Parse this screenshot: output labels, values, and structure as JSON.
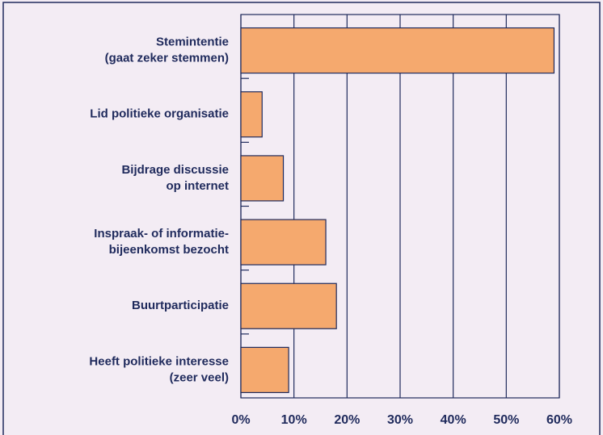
{
  "chart_data": {
    "type": "barh",
    "categories": [
      [
        "Stemintentie",
        "(gaat zeker stemmen)"
      ],
      [
        "Lid politieke organisatie"
      ],
      [
        "Bijdrage discussie",
        "op internet"
      ],
      [
        "Inspraak- of informatie-",
        "bijeenkomst bezocht"
      ],
      [
        "Buurtparticipatie"
      ],
      [
        "Heeft politieke interesse",
        "(zeer veel)"
      ]
    ],
    "values": [
      59,
      4,
      8,
      16,
      18,
      9
    ],
    "color": "#f5a96e",
    "xlim": [
      0,
      60
    ],
    "xticks": [
      {
        "value": 0,
        "label": "0%"
      },
      {
        "value": 10,
        "label": "10%"
      },
      {
        "value": 20,
        "label": "20%"
      },
      {
        "value": 30,
        "label": "30%"
      },
      {
        "value": 40,
        "label": "40%"
      },
      {
        "value": 50,
        "label": "50%"
      },
      {
        "value": 60,
        "label": "60%"
      }
    ],
    "grid": true
  }
}
